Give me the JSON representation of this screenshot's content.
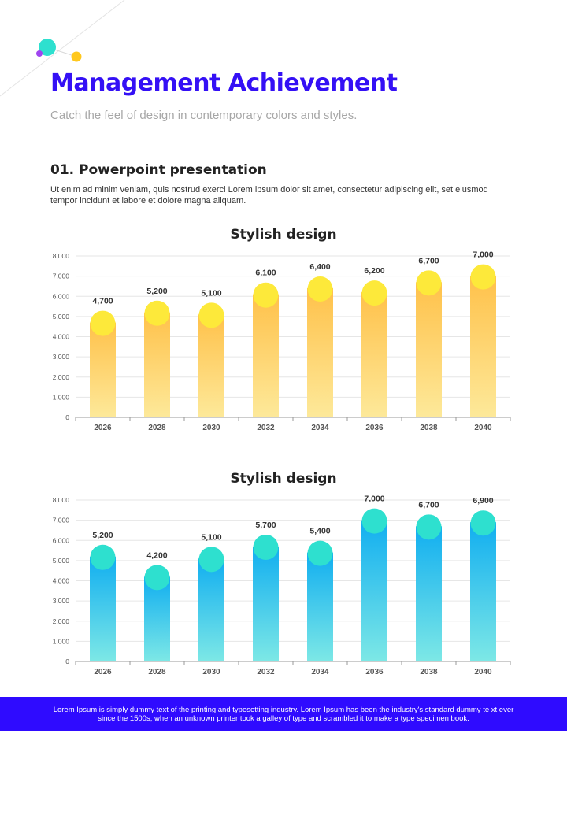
{
  "page": {
    "title": "Management Achievement",
    "subtitle": "Catch the feel of design in contemporary  colors and styles.",
    "section": {
      "heading": "01. Powerpoint presentation",
      "body": "Ut enim ad minim veniam, quis nostrud exerci Lorem ipsum dolor sit amet, consectetur adipiscing elit, set eiusmod tempor incidunt et labore et dolore magna aliquam."
    },
    "footer": "Lorem Ipsum is simply dummy text of the printing and typesetting industry. Lorem Ipsum has been the industry's standard dummy te xt ever since the 1500s, when an unknown printer took a galley of type and scrambled it to make a type specimen book."
  },
  "colors": {
    "accent": "#3410f5",
    "footer_bg": "#2f0bff",
    "yellow_top": "#ffc14a",
    "yellow_bottom": "#fde99a",
    "yellow_circle": "#fde93a",
    "blue_top": "#11aef0",
    "blue_bottom": "#7de8e6",
    "teal_circle": "#2ee0cf"
  },
  "chart_data": [
    {
      "type": "bar",
      "title": "Stylish design",
      "categories": [
        "2026",
        "2028",
        "2030",
        "2032",
        "2034",
        "2036",
        "2038",
        "2040"
      ],
      "values": [
        4700,
        5200,
        5100,
        6100,
        6400,
        6200,
        6700,
        7000
      ],
      "value_labels": [
        "4,700",
        "5,200",
        "5,100",
        "6,100",
        "6,400",
        "6,200",
        "6,700",
        "7,000"
      ],
      "yticks": [
        "0",
        "1,000",
        "2,000",
        "3,000",
        "4,000",
        "5,000",
        "6,000",
        "7,000",
        "8,000"
      ],
      "ylim": [
        0,
        8000
      ],
      "xlabel": "",
      "ylabel": "",
      "grid": true,
      "theme": "yellow"
    },
    {
      "type": "bar",
      "title": "Stylish design",
      "categories": [
        "2026",
        "2028",
        "2030",
        "2032",
        "2034",
        "2036",
        "2038",
        "2040"
      ],
      "values": [
        5200,
        4200,
        5100,
        5700,
        5400,
        7000,
        6700,
        6900
      ],
      "value_labels": [
        "5,200",
        "4,200",
        "5,100",
        "5,700",
        "5,400",
        "7,000",
        "6,700",
        "6,900"
      ],
      "yticks": [
        "0",
        "1,000",
        "2,000",
        "3,000",
        "4,000",
        "5,000",
        "6,000",
        "7,000",
        "8,000"
      ],
      "ylim": [
        0,
        8000
      ],
      "xlabel": "",
      "ylabel": "",
      "grid": true,
      "theme": "blue"
    }
  ]
}
